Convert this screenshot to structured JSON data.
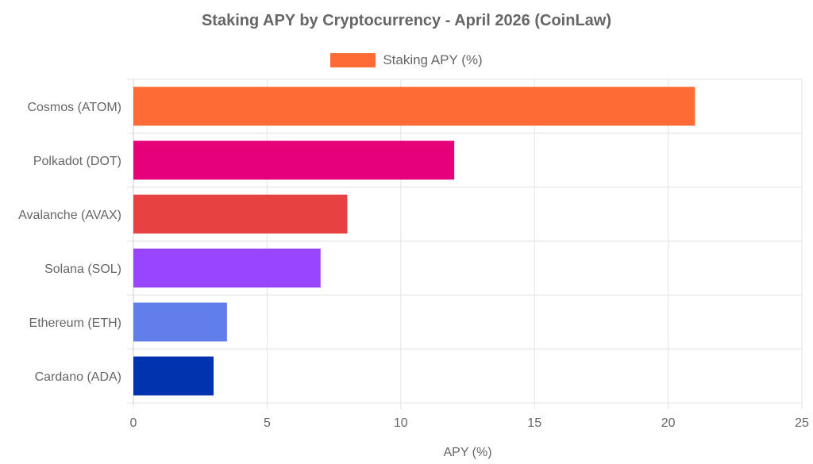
{
  "chart_data": {
    "type": "bar",
    "orientation": "horizontal",
    "title": "Staking APY by Cryptocurrency - April 2026 (CoinLaw)",
    "xlabel": "APY (%)",
    "ylabel": "",
    "categories": [
      "Cosmos (ATOM)",
      "Polkadot (DOT)",
      "Avalanche (AVAX)",
      "Solana (SOL)",
      "Ethereum (ETH)",
      "Cardano (ADA)"
    ],
    "series": [
      {
        "name": "Staking APY (%)",
        "values": [
          21,
          12,
          8,
          7,
          3.5,
          3
        ],
        "colors": [
          "#FF6B35",
          "#E6007A",
          "#E84142",
          "#9945FF",
          "#627EEA",
          "#0033AD"
        ]
      }
    ],
    "legend_color": "#FF6B35",
    "xlim": [
      0,
      25
    ],
    "xticks": [
      "0",
      "5",
      "10",
      "15",
      "20",
      "25"
    ],
    "grid": true,
    "legend_position": "top-center"
  }
}
